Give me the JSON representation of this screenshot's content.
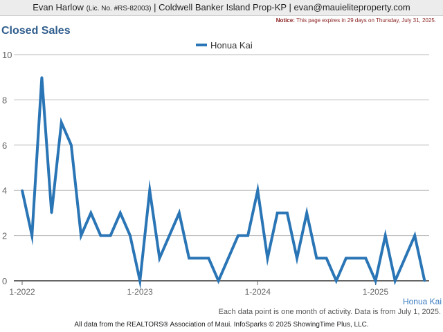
{
  "header": {
    "agent_name": "Evan Harlow",
    "license": "(Lic. No. #RS-82003)",
    "company_email": "| Coldwell Banker Island Prop-KP | evan@mauieliteproperty.com"
  },
  "notice": {
    "label": "Notice:",
    "text": "This page expires in 29 days on Thursday, July 31, 2025."
  },
  "page_title": "Closed Sales",
  "footnote": "Each data point is one month of activity. Data is from July 1, 2025.",
  "credit": "All data from the REALTORS® Association of Maui. InfoSparks © 2025 ShowingTime Plus, LLC.",
  "colors": {
    "series": "#2a75b5",
    "title": "#2f5d8c"
  },
  "chart_data": {
    "type": "line",
    "title": "Closed Sales",
    "x_start": "2022-01",
    "x_ticks": [
      "1-2022",
      "1-2023",
      "1-2024",
      "1-2025"
    ],
    "ylim": [
      0,
      10
    ],
    "y_ticks": [
      "0",
      "2",
      "4",
      "6",
      "8",
      "10"
    ],
    "grid": true,
    "legend_position": "top-center",
    "series": [
      {
        "name": "Honua Kai",
        "end_label": "Honua Kai",
        "values": [
          4,
          2,
          9,
          3,
          7,
          6,
          2,
          3,
          2,
          2,
          3,
          2,
          0,
          4,
          1,
          2,
          3,
          1,
          1,
          1,
          0,
          1,
          2,
          2,
          4,
          1,
          3,
          3,
          1,
          3,
          1,
          1,
          0,
          1,
          1,
          1,
          0,
          2,
          0,
          1,
          2,
          0
        ]
      }
    ]
  }
}
